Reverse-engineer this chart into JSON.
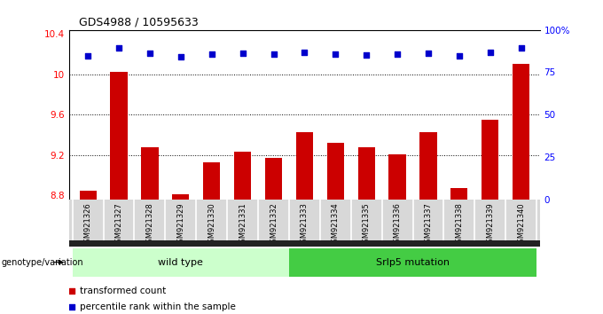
{
  "title": "GDS4988 / 10595633",
  "samples": [
    "GSM921326",
    "GSM921327",
    "GSM921328",
    "GSM921329",
    "GSM921330",
    "GSM921331",
    "GSM921332",
    "GSM921333",
    "GSM921334",
    "GSM921335",
    "GSM921336",
    "GSM921337",
    "GSM921338",
    "GSM921339",
    "GSM921340"
  ],
  "bar_values": [
    8.85,
    10.02,
    9.28,
    8.81,
    9.13,
    9.23,
    9.17,
    9.43,
    9.32,
    9.28,
    9.21,
    9.43,
    8.87,
    9.55,
    10.1
  ],
  "scatter_left_values": [
    10.18,
    10.26,
    10.21,
    10.17,
    10.2,
    10.21,
    10.2,
    10.22,
    10.2,
    10.19,
    10.2,
    10.21,
    10.18,
    10.22,
    10.26
  ],
  "bar_color": "#cc0000",
  "scatter_color": "#0000cc",
  "ylim_left": [
    8.76,
    10.44
  ],
  "ylim_right": [
    0,
    100
  ],
  "yticks_left": [
    8.8,
    9.2,
    9.6,
    10.0,
    10.4
  ],
  "ytick_labels_left": [
    "8.8",
    "9.2",
    "9.6",
    "10",
    "10.4"
  ],
  "yticks_right": [
    0,
    25,
    50,
    75,
    100
  ],
  "ytick_labels_right": [
    "0",
    "25",
    "50",
    "75",
    "100%"
  ],
  "bar_base": 8.76,
  "group1_label": "wild type",
  "group2_label": "Srlp5 mutation",
  "group1_count": 7,
  "genotype_label": "genotype/variation",
  "legend_bar": "transformed count",
  "legend_scatter": "percentile rank within the sample",
  "bg_color": "#d8d8d8",
  "group1_color": "#ccffcc",
  "group2_color": "#44cc44",
  "bottom_strip_color": "#222222",
  "gridlines": [
    9.2,
    9.6,
    10.0
  ]
}
